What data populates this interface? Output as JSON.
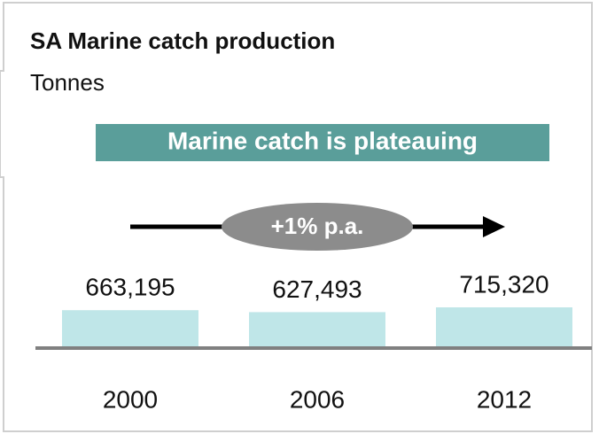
{
  "chart_data": {
    "type": "bar",
    "title": "SA Marine catch production",
    "subtitle": "Tonnes",
    "annotations": [
      "Marine catch is plateauing",
      "+1% p.a."
    ],
    "categories": [
      "2000",
      "2006",
      "2012"
    ],
    "values": [
      663195,
      627493,
      715320
    ],
    "value_labels": [
      "663,195",
      "627,493",
      "715,320"
    ],
    "color": "#bfe6e8"
  }
}
